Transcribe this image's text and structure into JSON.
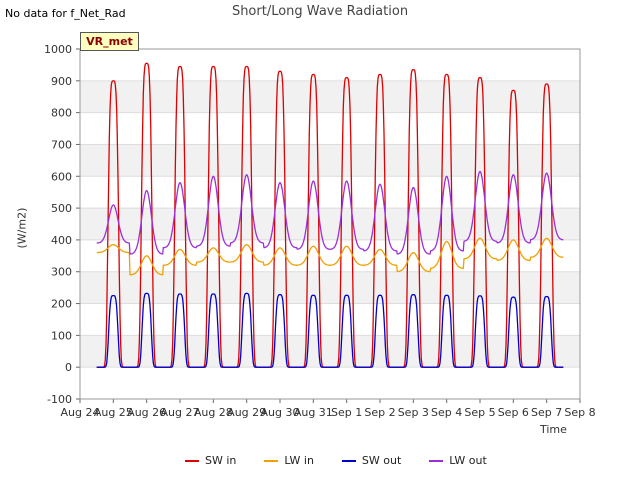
{
  "note": "No data for f_Net_Rad",
  "chart_data": {
    "type": "line",
    "title": "Short/Long Wave Radiation",
    "xlabel": "Time",
    "ylabel": "(W/m2)",
    "ylim": [
      -100,
      1000
    ],
    "yticks": [
      -100,
      0,
      100,
      200,
      300,
      400,
      500,
      600,
      700,
      800,
      900,
      1000
    ],
    "xlim": [
      0,
      15
    ],
    "x_ticks": [
      "Aug 24",
      "Aug 25",
      "Aug 26",
      "Aug 27",
      "Aug 28",
      "Aug 29",
      "Aug 30",
      "Aug 31",
      "Sep 1",
      "Sep 2",
      "Sep 3",
      "Sep 4",
      "Sep 5",
      "Sep 6",
      "Sep 7",
      "Sep 8"
    ],
    "grid": "horizontal bands",
    "legend_position": "bottom",
    "site_label": "VR_met",
    "day_x": [
      1,
      2,
      3,
      4,
      5,
      6,
      7,
      8,
      9,
      10,
      11,
      12,
      13,
      14
    ],
    "series": [
      {
        "name": "SW in",
        "color": "#dd0000",
        "daily_peak": [
          900,
          955,
          945,
          945,
          945,
          930,
          920,
          910,
          920,
          935,
          920,
          910,
          870,
          890
        ]
      },
      {
        "name": "LW in",
        "color": "#f0a000",
        "daily_peak": [
          385,
          350,
          370,
          375,
          385,
          375,
          380,
          380,
          370,
          360,
          395,
          405,
          400,
          405
        ],
        "daily_min": [
          360,
          290,
          320,
          330,
          330,
          320,
          320,
          320,
          320,
          300,
          310,
          340,
          335,
          345
        ]
      },
      {
        "name": "SW out",
        "color": "#0000cc",
        "daily_peak": [
          225,
          232,
          230,
          230,
          232,
          228,
          226,
          226,
          226,
          228,
          226,
          224,
          220,
          222
        ]
      },
      {
        "name": "LW out",
        "color": "#9b30d9",
        "daily_peak": [
          510,
          555,
          580,
          600,
          605,
          580,
          585,
          585,
          575,
          565,
          600,
          615,
          605,
          610
        ],
        "daily_min": [
          390,
          355,
          375,
          380,
          390,
          375,
          370,
          370,
          365,
          355,
          365,
          395,
          390,
          400
        ]
      }
    ]
  }
}
